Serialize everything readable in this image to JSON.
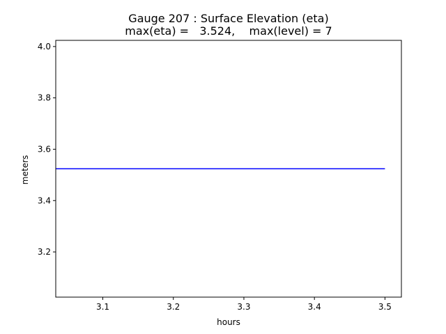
{
  "chart_data": {
    "type": "line",
    "title_line1": "Gauge 207 : Surface Elevation (eta)",
    "title_line2": "max(eta) =   3.524,    max(level) = 7",
    "xlabel": "hours",
    "ylabel": "meters",
    "xlim": [
      3.0333,
      3.5233
    ],
    "ylim": [
      3.024,
      4.024
    ],
    "xticks": [
      3.1,
      3.2,
      3.3,
      3.4,
      3.5
    ],
    "xtick_labels": [
      "3.1",
      "3.2",
      "3.3",
      "3.4",
      "3.5"
    ],
    "yticks": [
      3.2,
      3.4,
      3.6,
      3.8,
      4.0
    ],
    "ytick_labels": [
      "3.2",
      "3.4",
      "3.6",
      "3.8",
      "4.0"
    ],
    "grid": false,
    "series": [
      {
        "color": "#0000ff",
        "x": [
          3.0333,
          3.5
        ],
        "y": [
          3.524,
          3.524
        ]
      }
    ]
  }
}
